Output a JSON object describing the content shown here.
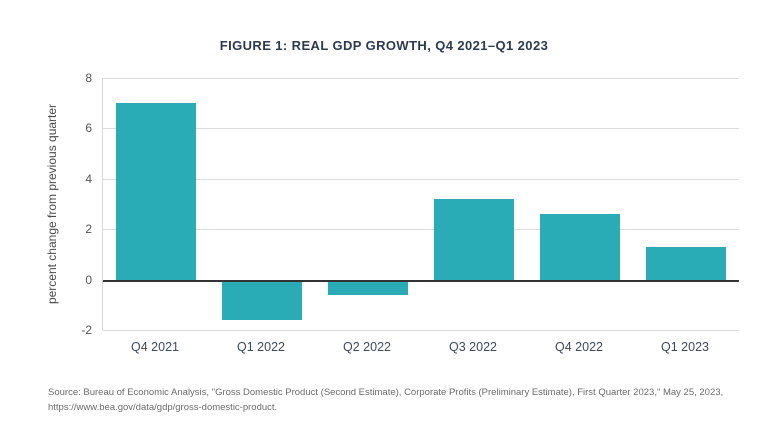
{
  "figure": {
    "source_line1": "Source: Bureau of Economic Analysis, \"Gross Domestic Product (Second Estimate), Corporate Profits (Preliminary Estimate), First Quarter 2023,\" May 25, 2023,",
    "source_line2": "https://www.bea.gov/data/gdp/gross-domestic-product."
  },
  "chart_data": {
    "type": "bar",
    "title": "FIGURE 1: REAL GDP GROWTH, Q4 2021–Q1 2023",
    "categories": [
      "Q4 2021",
      "Q1 2022",
      "Q2 2022",
      "Q3 2022",
      "Q4 2022",
      "Q1 2023"
    ],
    "values": [
      7.0,
      -1.6,
      -0.6,
      3.2,
      2.6,
      1.3
    ],
    "xlabel": "",
    "ylabel": "percent change from previous quarter",
    "ylim": [
      -2,
      8
    ],
    "yticks": [
      -2,
      0,
      2,
      4,
      6,
      8
    ],
    "bar_color": "#29acb6",
    "grid": true,
    "legend": false
  }
}
